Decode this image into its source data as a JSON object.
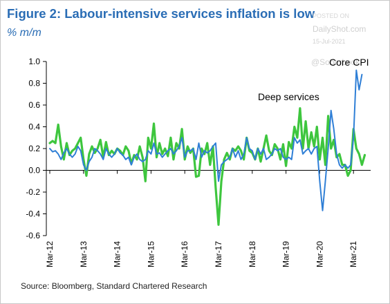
{
  "header": {
    "title": "Figure 2: Labour-intensive services inflation is low",
    "subtitle": "% m/m"
  },
  "watermark": {
    "line1": "POSTED ON",
    "line2": "DailyShot.com",
    "line3": "15-Jul-2021",
    "line4": "@SoberLook"
  },
  "footer": {
    "source": "Source: Bloomberg, Standard Chartered Research"
  },
  "chart_data": {
    "type": "line",
    "title": "Figure 2: Labour-intensive services inflation is low",
    "ylabel": "% m/m",
    "xlabel": "",
    "ylim": [
      -0.6,
      1.0
    ],
    "yticks": [
      "1.0",
      "0.8",
      "0.6",
      "0.4",
      "0.2",
      "0.0",
      "-0.2",
      "-0.4",
      "-0.6"
    ],
    "ytick_values": [
      1.0,
      0.8,
      0.6,
      0.4,
      0.2,
      0.0,
      -0.2,
      -0.4,
      -0.6
    ],
    "xlim": [
      "2012-03",
      "2021-07"
    ],
    "xticks": [
      "Mar-12",
      "Mar-13",
      "Mar-14",
      "Mar-15",
      "Mar-16",
      "Mar-17",
      "Mar-18",
      "Mar-19",
      "Mar-20",
      "Mar-21"
    ],
    "grid": false,
    "legend": "none",
    "annotations": [
      "Deep services",
      "Core CPI"
    ],
    "series": [
      {
        "name": "Deep services",
        "color": "#3ec63e",
        "points": [
          [
            "2012-03",
            0.25
          ],
          [
            "2012-04",
            0.27
          ],
          [
            "2012-05",
            0.25
          ],
          [
            "2012-06",
            0.42
          ],
          [
            "2012-07",
            0.22
          ],
          [
            "2012-08",
            0.1
          ],
          [
            "2012-09",
            0.25
          ],
          [
            "2012-10",
            0.14
          ],
          [
            "2012-11",
            0.18
          ],
          [
            "2012-12",
            0.2
          ],
          [
            "2013-01",
            0.25
          ],
          [
            "2013-02",
            0.3
          ],
          [
            "2013-03",
            0.1
          ],
          [
            "2013-04",
            -0.05
          ],
          [
            "2013-05",
            0.15
          ],
          [
            "2013-06",
            0.22
          ],
          [
            "2013-07",
            0.16
          ],
          [
            "2013-08",
            0.2
          ],
          [
            "2013-09",
            0.28
          ],
          [
            "2013-10",
            0.12
          ],
          [
            "2013-11",
            0.26
          ],
          [
            "2013-12",
            0.14
          ],
          [
            "2014-01",
            0.18
          ],
          [
            "2014-02",
            0.15
          ],
          [
            "2014-03",
            0.2
          ],
          [
            "2014-04",
            0.18
          ],
          [
            "2014-05",
            0.14
          ],
          [
            "2014-06",
            0.22
          ],
          [
            "2014-07",
            0.18
          ],
          [
            "2014-08",
            0.06
          ],
          [
            "2014-09",
            0.14
          ],
          [
            "2014-10",
            0.1
          ],
          [
            "2014-11",
            0.22
          ],
          [
            "2014-12",
            0.12
          ],
          [
            "2015-01",
            -0.1
          ],
          [
            "2015-02",
            0.3
          ],
          [
            "2015-03",
            0.2
          ],
          [
            "2015-04",
            0.43
          ],
          [
            "2015-05",
            0.12
          ],
          [
            "2015-06",
            0.25
          ],
          [
            "2015-07",
            0.15
          ],
          [
            "2015-08",
            0.2
          ],
          [
            "2015-09",
            0.13
          ],
          [
            "2015-10",
            0.3
          ],
          [
            "2015-11",
            0.1
          ],
          [
            "2015-12",
            0.25
          ],
          [
            "2016-01",
            0.2
          ],
          [
            "2016-02",
            0.38
          ],
          [
            "2016-03",
            0.1
          ],
          [
            "2016-04",
            0.22
          ],
          [
            "2016-05",
            0.16
          ],
          [
            "2016-06",
            0.2
          ],
          [
            "2016-07",
            -0.06
          ],
          [
            "2016-08",
            -0.05
          ],
          [
            "2016-09",
            0.2
          ],
          [
            "2016-10",
            0.15
          ],
          [
            "2016-11",
            0.25
          ],
          [
            "2016-12",
            0.05
          ],
          [
            "2017-01",
            0.22
          ],
          [
            "2017-02",
            -0.16
          ],
          [
            "2017-03",
            -0.5
          ],
          [
            "2017-04",
            -0.1
          ],
          [
            "2017-05",
            0.1
          ],
          [
            "2017-06",
            0.16
          ],
          [
            "2017-07",
            0.1
          ],
          [
            "2017-08",
            0.2
          ],
          [
            "2017-09",
            0.18
          ],
          [
            "2017-10",
            0.22
          ],
          [
            "2017-11",
            0.18
          ],
          [
            "2017-12",
            0.1
          ],
          [
            "2018-01",
            0.3
          ],
          [
            "2018-02",
            0.18
          ],
          [
            "2018-03",
            0.16
          ],
          [
            "2018-04",
            0.1
          ],
          [
            "2018-05",
            0.2
          ],
          [
            "2018-06",
            0.08
          ],
          [
            "2018-07",
            0.2
          ],
          [
            "2018-08",
            0.32
          ],
          [
            "2018-09",
            0.18
          ],
          [
            "2018-10",
            0.14
          ],
          [
            "2018-11",
            0.24
          ],
          [
            "2018-12",
            0.2
          ],
          [
            "2019-01",
            0.1
          ],
          [
            "2019-02",
            0.24
          ],
          [
            "2019-03",
            0.04
          ],
          [
            "2019-04",
            0.26
          ],
          [
            "2019-05",
            0.2
          ],
          [
            "2019-06",
            0.4
          ],
          [
            "2019-07",
            0.3
          ],
          [
            "2019-08",
            0.57
          ],
          [
            "2019-09",
            0.2
          ],
          [
            "2019-10",
            0.45
          ],
          [
            "2019-11",
            0.2
          ],
          [
            "2019-12",
            0.35
          ],
          [
            "2020-01",
            0.22
          ],
          [
            "2020-02",
            0.4
          ],
          [
            "2020-03",
            0.1
          ],
          [
            "2020-04",
            0.3
          ],
          [
            "2020-05",
            0.05
          ],
          [
            "2020-06",
            0.5
          ],
          [
            "2020-07",
            0.2
          ],
          [
            "2020-08",
            0.28
          ],
          [
            "2020-09",
            0.12
          ],
          [
            "2020-10",
            0.15
          ],
          [
            "2020-11",
            0.05
          ],
          [
            "2020-12",
            0.05
          ],
          [
            "2021-01",
            -0.05
          ],
          [
            "2021-02",
            0.0
          ],
          [
            "2021-03",
            0.38
          ],
          [
            "2021-04",
            0.2
          ],
          [
            "2021-05",
            0.15
          ],
          [
            "2021-06",
            0.05
          ],
          [
            "2021-07",
            0.14
          ]
        ]
      },
      {
        "name": "Core CPI",
        "color": "#2f7fd6",
        "points": [
          [
            "2012-03",
            0.2
          ],
          [
            "2012-04",
            0.17
          ],
          [
            "2012-05",
            0.18
          ],
          [
            "2012-06",
            0.15
          ],
          [
            "2012-07",
            0.1
          ],
          [
            "2012-08",
            0.16
          ],
          [
            "2012-09",
            0.2
          ],
          [
            "2012-10",
            0.15
          ],
          [
            "2012-11",
            0.12
          ],
          [
            "2012-12",
            0.15
          ],
          [
            "2013-01",
            0.22
          ],
          [
            "2013-02",
            0.18
          ],
          [
            "2013-03",
            0.05
          ],
          [
            "2013-04",
            0.0
          ],
          [
            "2013-05",
            0.08
          ],
          [
            "2013-06",
            0.12
          ],
          [
            "2013-07",
            0.2
          ],
          [
            "2013-08",
            0.18
          ],
          [
            "2013-09",
            0.15
          ],
          [
            "2013-10",
            0.1
          ],
          [
            "2013-11",
            0.2
          ],
          [
            "2013-12",
            0.15
          ],
          [
            "2014-01",
            0.12
          ],
          [
            "2014-02",
            0.15
          ],
          [
            "2014-03",
            0.2
          ],
          [
            "2014-04",
            0.16
          ],
          [
            "2014-05",
            0.14
          ],
          [
            "2014-06",
            0.1
          ],
          [
            "2014-07",
            0.12
          ],
          [
            "2014-08",
            0.05
          ],
          [
            "2014-09",
            0.12
          ],
          [
            "2014-10",
            0.15
          ],
          [
            "2014-11",
            0.1
          ],
          [
            "2014-12",
            0.08
          ],
          [
            "2015-01",
            0.1
          ],
          [
            "2015-02",
            0.18
          ],
          [
            "2015-03",
            0.15
          ],
          [
            "2015-04",
            0.25
          ],
          [
            "2015-05",
            0.15
          ],
          [
            "2015-06",
            0.16
          ],
          [
            "2015-07",
            0.12
          ],
          [
            "2015-08",
            0.15
          ],
          [
            "2015-09",
            0.18
          ],
          [
            "2015-10",
            0.2
          ],
          [
            "2015-11",
            0.15
          ],
          [
            "2015-12",
            0.18
          ],
          [
            "2016-01",
            0.22
          ],
          [
            "2016-02",
            0.3
          ],
          [
            "2016-03",
            0.12
          ],
          [
            "2016-04",
            0.18
          ],
          [
            "2016-05",
            0.18
          ],
          [
            "2016-06",
            0.2
          ],
          [
            "2016-07",
            0.1
          ],
          [
            "2016-08",
            0.25
          ],
          [
            "2016-09",
            0.12
          ],
          [
            "2016-10",
            0.18
          ],
          [
            "2016-11",
            0.16
          ],
          [
            "2016-12",
            0.18
          ],
          [
            "2017-01",
            0.22
          ],
          [
            "2017-02",
            0.25
          ],
          [
            "2017-03",
            -0.1
          ],
          [
            "2017-04",
            0.05
          ],
          [
            "2017-05",
            0.08
          ],
          [
            "2017-06",
            0.1
          ],
          [
            "2017-07",
            0.12
          ],
          [
            "2017-08",
            0.2
          ],
          [
            "2017-09",
            0.12
          ],
          [
            "2017-10",
            0.18
          ],
          [
            "2017-11",
            0.1
          ],
          [
            "2017-12",
            0.15
          ],
          [
            "2018-01",
            0.3
          ],
          [
            "2018-02",
            0.2
          ],
          [
            "2018-03",
            0.18
          ],
          [
            "2018-04",
            0.1
          ],
          [
            "2018-05",
            0.2
          ],
          [
            "2018-06",
            0.15
          ],
          [
            "2018-07",
            0.2
          ],
          [
            "2018-08",
            0.1
          ],
          [
            "2018-09",
            0.12
          ],
          [
            "2018-10",
            0.15
          ],
          [
            "2018-11",
            0.2
          ],
          [
            "2018-12",
            0.18
          ],
          [
            "2019-01",
            0.2
          ],
          [
            "2019-02",
            0.12
          ],
          [
            "2019-03",
            0.1
          ],
          [
            "2019-04",
            0.12
          ],
          [
            "2019-05",
            0.1
          ],
          [
            "2019-06",
            0.3
          ],
          [
            "2019-07",
            0.25
          ],
          [
            "2019-08",
            0.28
          ],
          [
            "2019-09",
            0.15
          ],
          [
            "2019-10",
            0.18
          ],
          [
            "2019-11",
            0.2
          ],
          [
            "2019-12",
            0.15
          ],
          [
            "2020-01",
            0.2
          ],
          [
            "2020-02",
            0.22
          ],
          [
            "2020-03",
            -0.1
          ],
          [
            "2020-04",
            -0.37
          ],
          [
            "2020-05",
            -0.1
          ],
          [
            "2020-06",
            0.2
          ],
          [
            "2020-07",
            0.55
          ],
          [
            "2020-08",
            0.38
          ],
          [
            "2020-09",
            0.15
          ],
          [
            "2020-10",
            0.05
          ],
          [
            "2020-11",
            0.02
          ],
          [
            "2020-12",
            0.05
          ],
          [
            "2021-01",
            0.02
          ],
          [
            "2021-02",
            0.05
          ],
          [
            "2021-03",
            0.3
          ],
          [
            "2021-04",
            0.92
          ],
          [
            "2021-05",
            0.74
          ],
          [
            "2021-06",
            0.88
          ]
        ]
      }
    ]
  }
}
